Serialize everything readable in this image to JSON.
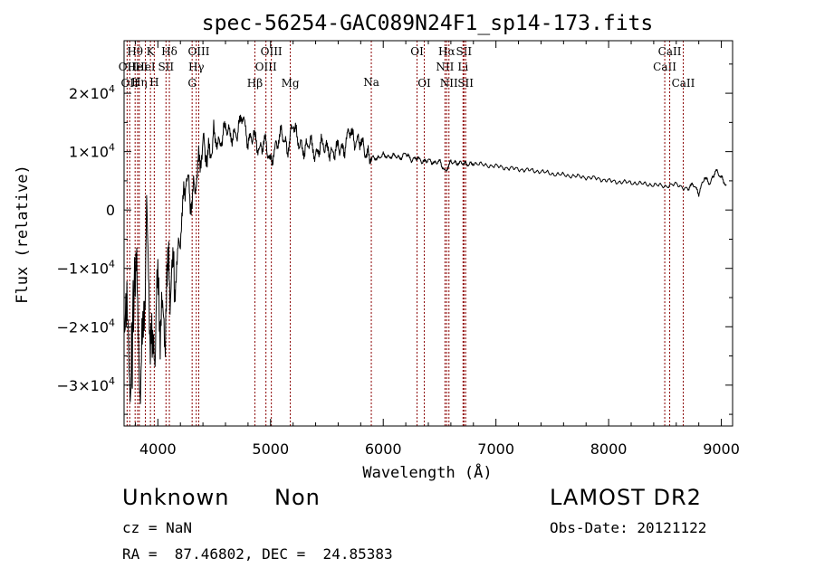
{
  "chart_data": {
    "type": "line",
    "title": "spec-56254-GAC089N24F1_sp14-173.fits",
    "xlabel": "Wavelength (Å)",
    "ylabel": "Flux (relative)",
    "xlim": [
      3700,
      9100
    ],
    "ylim": [
      -37000,
      29000
    ],
    "xticks": [
      {
        "value": 4000,
        "label": "4000"
      },
      {
        "value": 5000,
        "label": "5000"
      },
      {
        "value": 6000,
        "label": "6000"
      },
      {
        "value": 7000,
        "label": "7000"
      },
      {
        "value": 8000,
        "label": "8000"
      },
      {
        "value": 9000,
        "label": "9000"
      }
    ],
    "yticks": [
      {
        "value": 20000,
        "mant": "2",
        "sign": ""
      },
      {
        "value": 10000,
        "mant": "1",
        "sign": ""
      },
      {
        "value": 0,
        "mant": "0",
        "sign": ""
      },
      {
        "value": -10000,
        "mant": "1",
        "sign": "−"
      },
      {
        "value": -20000,
        "mant": "2",
        "sign": "−"
      },
      {
        "value": -30000,
        "mant": "3",
        "sign": "−"
      }
    ],
    "tick_times": "×10",
    "tick_exp": "4",
    "line_color": "#000000",
    "marker_color": "#8b0000",
    "spectrum": {
      "x": [
        3700,
        3760,
        3800,
        3850,
        3900,
        3950,
        4000,
        4050,
        4100,
        4150,
        4200,
        4250,
        4300,
        4350,
        4400,
        4450,
        4500,
        4550,
        4600,
        4650,
        4700,
        4750,
        4800,
        4850,
        4900,
        4950,
        5000,
        5050,
        5100,
        5150,
        5200,
        5250,
        5300,
        5350,
        5400,
        5450,
        5500,
        5550,
        5600,
        5650,
        5700,
        5750,
        5800,
        5850,
        5900,
        5950,
        6000,
        6050,
        6100,
        6150,
        6200,
        6250,
        6300,
        6350,
        6400,
        6450,
        6500,
        6550,
        6600,
        6650,
        6700,
        6750,
        6800,
        6900,
        7000,
        7100,
        7200,
        7300,
        7400,
        7500,
        7600,
        7700,
        7800,
        7900,
        8000,
        8100,
        8200,
        8300,
        8400,
        8500,
        8600,
        8700,
        8750,
        8800,
        8850,
        8900,
        8950,
        9000,
        9050
      ],
      "y": [
        -15000,
        -28000,
        -9000,
        -31000,
        -3000,
        -27000,
        -14000,
        -21000,
        -10000,
        -13000,
        -4000,
        6000,
        1000,
        6500,
        11000,
        9000,
        12500,
        11000,
        14500,
        12500,
        13000,
        16500,
        11500,
        13000,
        10000,
        12000,
        8000,
        11000,
        13500,
        10000,
        15000,
        11500,
        10000,
        12000,
        9000,
        11500,
        10500,
        9500,
        11000,
        10000,
        14000,
        11500,
        12000,
        9500,
        9000,
        8800,
        9500,
        9000,
        9400,
        8800,
        9800,
        8500,
        9000,
        8200,
        8600,
        8000,
        8400,
        6500,
        8300,
        8000,
        8100,
        7800,
        8000,
        7700,
        7500,
        7200,
        7000,
        6800,
        6600,
        6200,
        6000,
        5800,
        5600,
        5400,
        5000,
        4800,
        4700,
        4500,
        4300,
        4100,
        4400,
        3600,
        4500,
        2800,
        5600,
        4500,
        6800,
        5600,
        4000
      ]
    },
    "markers": [
      {
        "wave": 3727,
        "label": "OII",
        "row": 2
      },
      {
        "wave": 3750,
        "label": "OII",
        "row": 4
      },
      {
        "wave": 3798,
        "label": "Hθ",
        "row": 1
      },
      {
        "wave": 3820,
        "label": "HeI",
        "row": 2
      },
      {
        "wave": 3835,
        "label": "Hη",
        "row": 3
      },
      {
        "wave": 3889,
        "label": "HeI",
        "row": 2
      },
      {
        "wave": 3934,
        "label": "K",
        "row": 1
      },
      {
        "wave": 3968,
        "label": "H",
        "row": 3
      },
      {
        "wave": 4072,
        "label": "SII",
        "row": 2
      },
      {
        "wave": 4102,
        "label": "Hδ",
        "row": 1
      },
      {
        "wave": 4304,
        "label": "G",
        "row": 4
      },
      {
        "wave": 4341,
        "label": "Hγ",
        "row": 2
      },
      {
        "wave": 4363,
        "label": "OIII",
        "row": 1
      },
      {
        "wave": 4861,
        "label": "Hβ",
        "row": 4
      },
      {
        "wave": 4959,
        "label": "OIII",
        "row": 2
      },
      {
        "wave": 5007,
        "label": "OIII",
        "row": 1
      },
      {
        "wave": 5175,
        "label": "Mg",
        "row": 4
      },
      {
        "wave": 5894,
        "label": "Na",
        "row": 3
      },
      {
        "wave": 6300,
        "label": "OI",
        "row": 1
      },
      {
        "wave": 6364,
        "label": "OI",
        "row": 4
      },
      {
        "wave": 6548,
        "label": "NII",
        "row": 2
      },
      {
        "wave": 6563,
        "label": "Hα",
        "row": 1
      },
      {
        "wave": 6583,
        "label": "NII",
        "row": 4
      },
      {
        "wave": 6708,
        "label": "Li",
        "row": 2
      },
      {
        "wave": 6716,
        "label": "SII",
        "row": 1
      },
      {
        "wave": 6731,
        "label": "SII",
        "row": 4
      },
      {
        "wave": 8498,
        "label": "CaII",
        "row": 2
      },
      {
        "wave": 8542,
        "label": "CaII",
        "row": 1
      },
      {
        "wave": 8662,
        "label": "CaII",
        "row": 4
      }
    ]
  },
  "info": {
    "class_label": "Unknown",
    "subclass_label": "Non",
    "survey_label": "LAMOST DR2",
    "cz_line": "cz = NaN",
    "obs_date_line": "Obs-Date: 20121122",
    "coords_line": "RA =  87.46802, DEC =  24.85383"
  }
}
